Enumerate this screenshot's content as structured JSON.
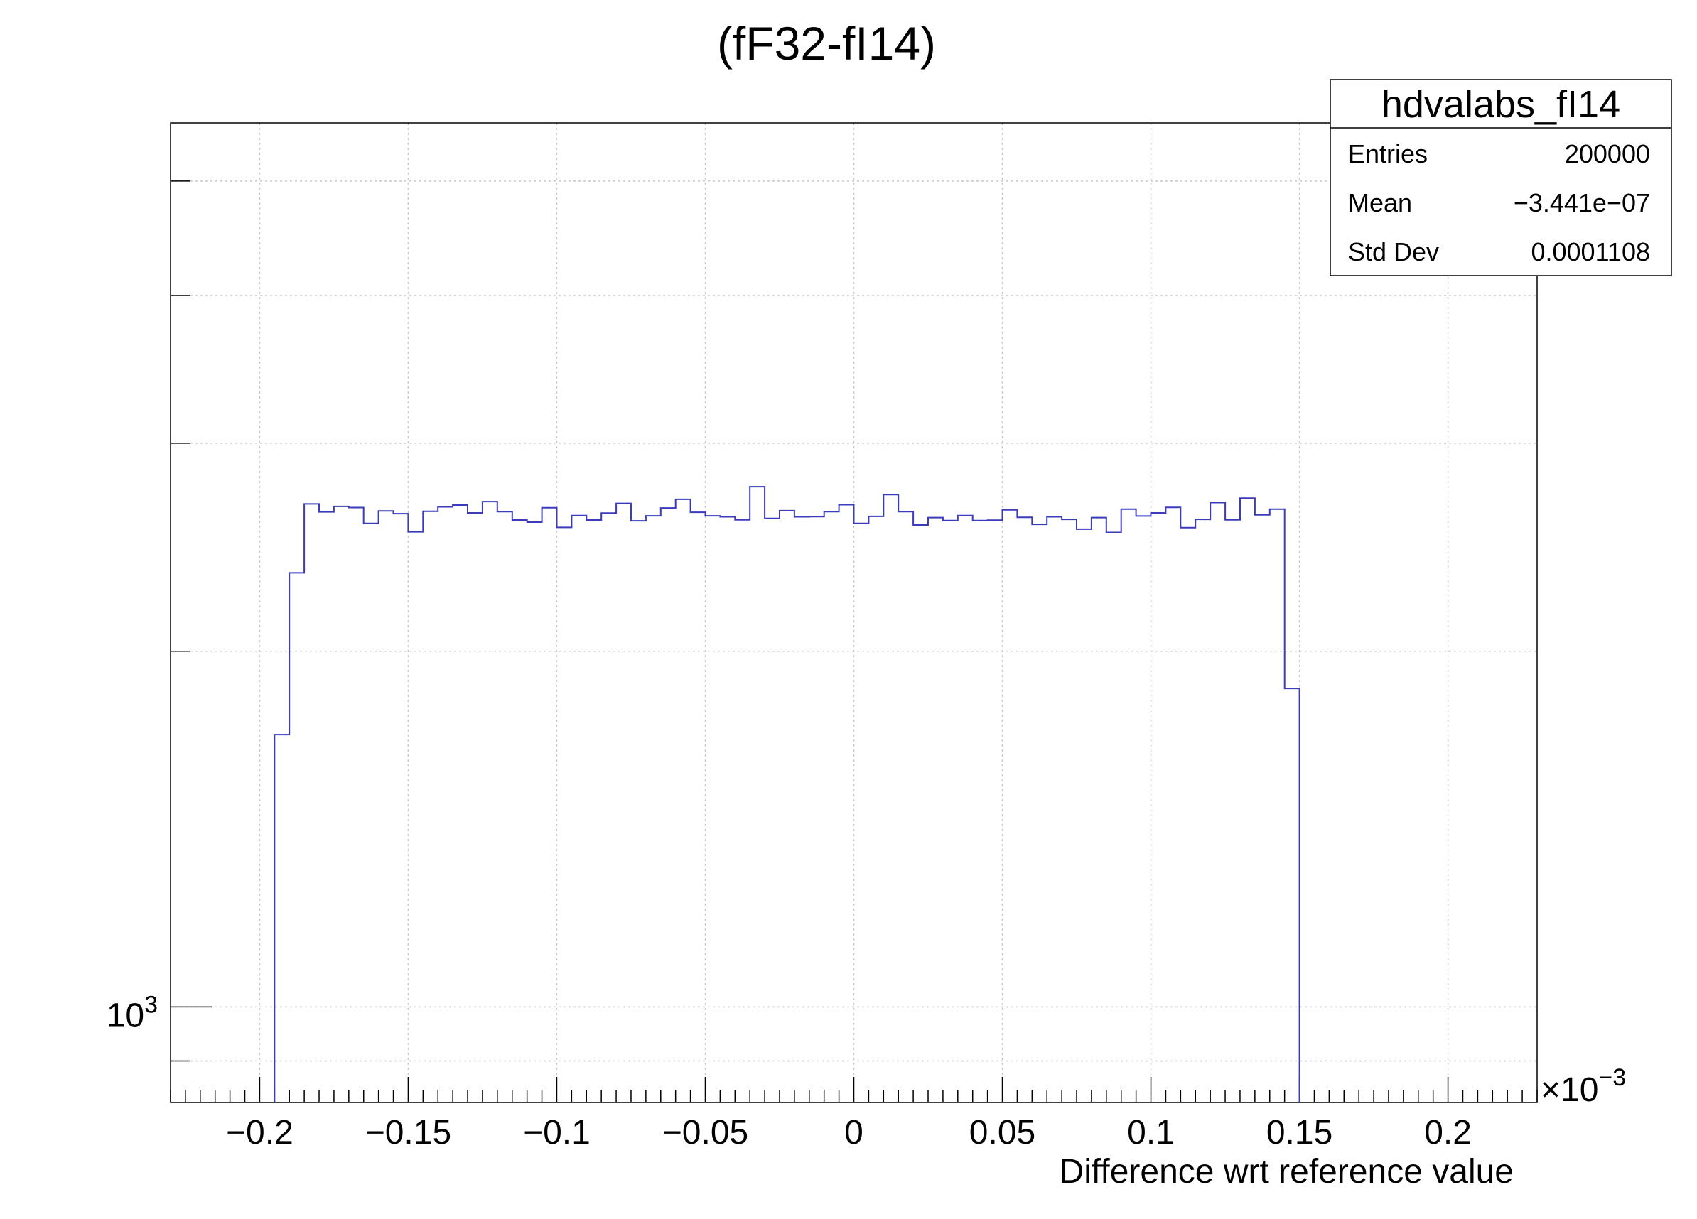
{
  "chart_data": {
    "type": "histogram",
    "title": "(fF32-fI14)",
    "xlabel": "Difference wrt reference value",
    "ylabel": "",
    "x_multiplier": "×10",
    "x_multiplier_exp": "−3",
    "xlim": [
      -0.23,
      0.23
    ],
    "x_ticks": [
      -0.2,
      -0.15,
      -0.1,
      -0.05,
      0,
      0.05,
      0.1,
      0.15,
      0.2
    ],
    "x_tick_labels": [
      "−0.2",
      "−0.15",
      "−0.1",
      "−0.05",
      "0",
      "0.05",
      "0.1",
      "0.15",
      "0.2"
    ],
    "y_scale": "log",
    "ylim": [
      830,
      5600
    ],
    "y_tick_label_base": "10",
    "y_tick_label_exp": "3",
    "y_major_tick": 1000,
    "y_minor_ticks": [
      900,
      2000,
      3000,
      4000,
      5000
    ],
    "grid": true,
    "line_color": "#3b3bbd",
    "bin_edges_start": -0.195,
    "bin_width": 0.005,
    "values": [
      1700,
      2330,
      2665,
      2624,
      2652,
      2646,
      2566,
      2629,
      2615,
      2524,
      2627,
      2650,
      2659,
      2619,
      2677,
      2625,
      2583,
      2572,
      2645,
      2546,
      2605,
      2583,
      2618,
      2668,
      2579,
      2604,
      2644,
      2689,
      2622,
      2604,
      2599,
      2584,
      2756,
      2591,
      2630,
      2599,
      2600,
      2625,
      2661,
      2566,
      2601,
      2714,
      2625,
      2558,
      2595,
      2580,
      2605,
      2580,
      2582,
      2634,
      2596,
      2561,
      2599,
      2586,
      2537,
      2595,
      2521,
      2638,
      2603,
      2619,
      2647,
      2545,
      2586,
      2672,
      2584,
      2695,
      2609,
      2638,
      1860
    ],
    "legend": "top-right",
    "stats_box": {
      "name": "hdvalabs_fI14",
      "rows": [
        {
          "label": "Entries",
          "value": "200000"
        },
        {
          "label": "Mean",
          "value": "−3.441e−07"
        },
        {
          "label": "Std Dev",
          "value": "0.0001108"
        }
      ]
    }
  }
}
